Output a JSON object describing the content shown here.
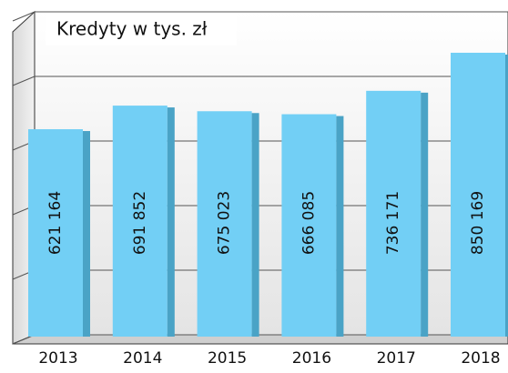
{
  "chart_data": {
    "type": "bar",
    "title": "Kredyty w tys. zł",
    "categories": [
      "2013",
      "2014",
      "2015",
      "2016",
      "2017",
      "2018"
    ],
    "values": [
      621164,
      691852,
      675023,
      666085,
      736171,
      850169
    ],
    "value_labels": [
      "621 164",
      "691 852",
      "675 023",
      "666 085",
      "736 171",
      "850 169"
    ],
    "color": "#72cff5",
    "ylim": [
      0,
      1000000
    ],
    "yticks": [
      0,
      200000,
      400000,
      600000,
      800000,
      1000000
    ],
    "grid": true
  }
}
